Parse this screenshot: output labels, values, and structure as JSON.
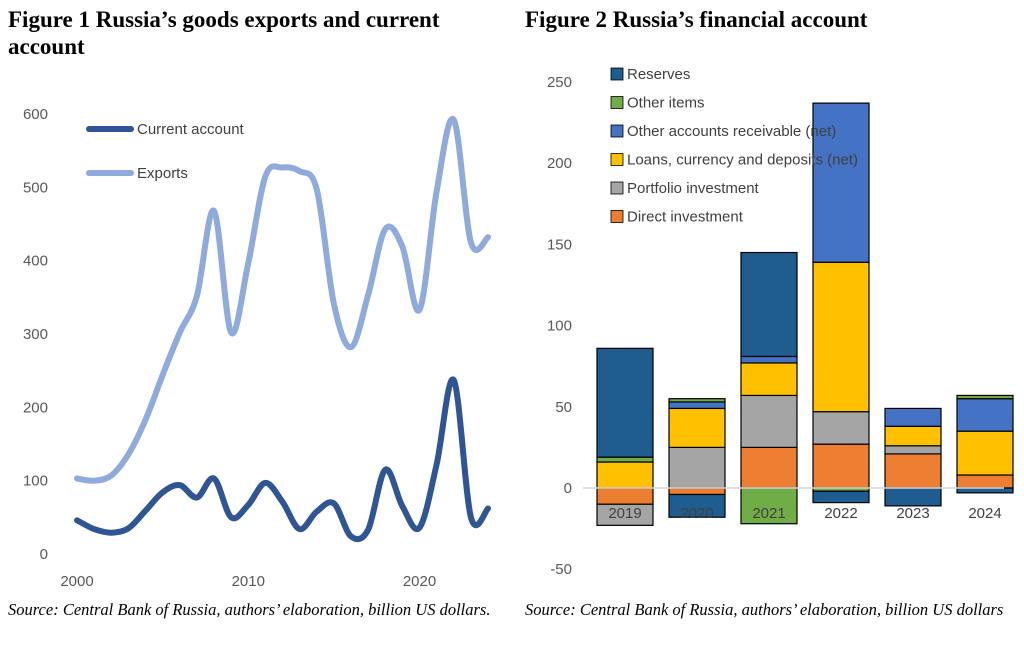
{
  "figure1": {
    "number_label": "Figure 1",
    "title": "Russia’s goods exports and current account",
    "source": "Source: Central Bank of Russia, authors’ elaboration, billion US dollars.",
    "line1_color": "#2F5597",
    "line2_color": "#8FAADC"
  },
  "figure2": {
    "number_label": "Figure 2",
    "title": "Russia’s financial account",
    "source": "Source: Central Bank of Russia, authors’ elaboration, billion US dollars"
  },
  "chart_data": [
    {
      "type": "line",
      "title": "Russia’s goods exports and current account",
      "xlabel": "",
      "ylabel": "",
      "xlim": [
        2000,
        2024
      ],
      "ylim": [
        0,
        600
      ],
      "x_ticks": [
        2000,
        2010,
        2020
      ],
      "y_ticks": [
        0,
        100,
        200,
        300,
        400,
        500,
        600
      ],
      "grid": false,
      "legend_position": "top-left",
      "x": [
        2000,
        2001,
        2002,
        2003,
        2004,
        2005,
        2006,
        2007,
        2008,
        2009,
        2010,
        2011,
        2012,
        2013,
        2014,
        2015,
        2016,
        2017,
        2018,
        2019,
        2020,
        2021,
        2022,
        2023,
        2024
      ],
      "series": [
        {
          "name": "Current account",
          "values": [
            46,
            34,
            29,
            35,
            59,
            84,
            94,
            77,
            103,
            50,
            67,
            97,
            71,
            34,
            58,
            69,
            24,
            33,
            115,
            65,
            36,
            122,
            237,
            50,
            62
          ]
        },
        {
          "name": "Exports",
          "values": [
            103,
            100,
            107,
            136,
            183,
            244,
            302,
            352,
            468,
            302,
            397,
            515,
            527,
            522,
            497,
            341,
            282,
            353,
            443,
            419,
            333,
            494,
            592,
            425,
            432
          ]
        }
      ]
    },
    {
      "type": "bar",
      "stacked": true,
      "title": "Russia’s financial account",
      "xlabel": "",
      "ylabel": "",
      "ylim": [
        -50,
        250
      ],
      "y_ticks": [
        -50,
        0,
        50,
        100,
        150,
        200,
        250
      ],
      "grid": false,
      "legend_position": "top-left",
      "categories": [
        "2019",
        "2020",
        "2021",
        "2022",
        "2023",
        "2024"
      ],
      "series": [
        {
          "name": "Reserves",
          "color": "#1F5C8F",
          "values": [
            67,
            -14,
            64,
            -7,
            -11,
            -3
          ]
        },
        {
          "name": "Other items",
          "color": "#70AD47",
          "values": [
            3,
            2,
            -22,
            -2,
            0,
            2
          ]
        },
        {
          "name": "Other accounts receivable (net)",
          "color": "#4472C4",
          "values": [
            0,
            4,
            4,
            98,
            11,
            20
          ]
        },
        {
          "name": "Loans, currency and deposits (net)",
          "color": "#FFC000",
          "values": [
            16,
            24,
            20,
            92,
            12,
            27
          ]
        },
        {
          "name": "Portfolio investment",
          "color": "#A5A5A5",
          "values": [
            -13,
            25,
            32,
            20,
            5,
            0
          ]
        },
        {
          "name": "Direct investment",
          "color": "#ED7D31",
          "values": [
            -10,
            -4,
            25,
            27,
            21,
            8
          ]
        }
      ]
    }
  ]
}
